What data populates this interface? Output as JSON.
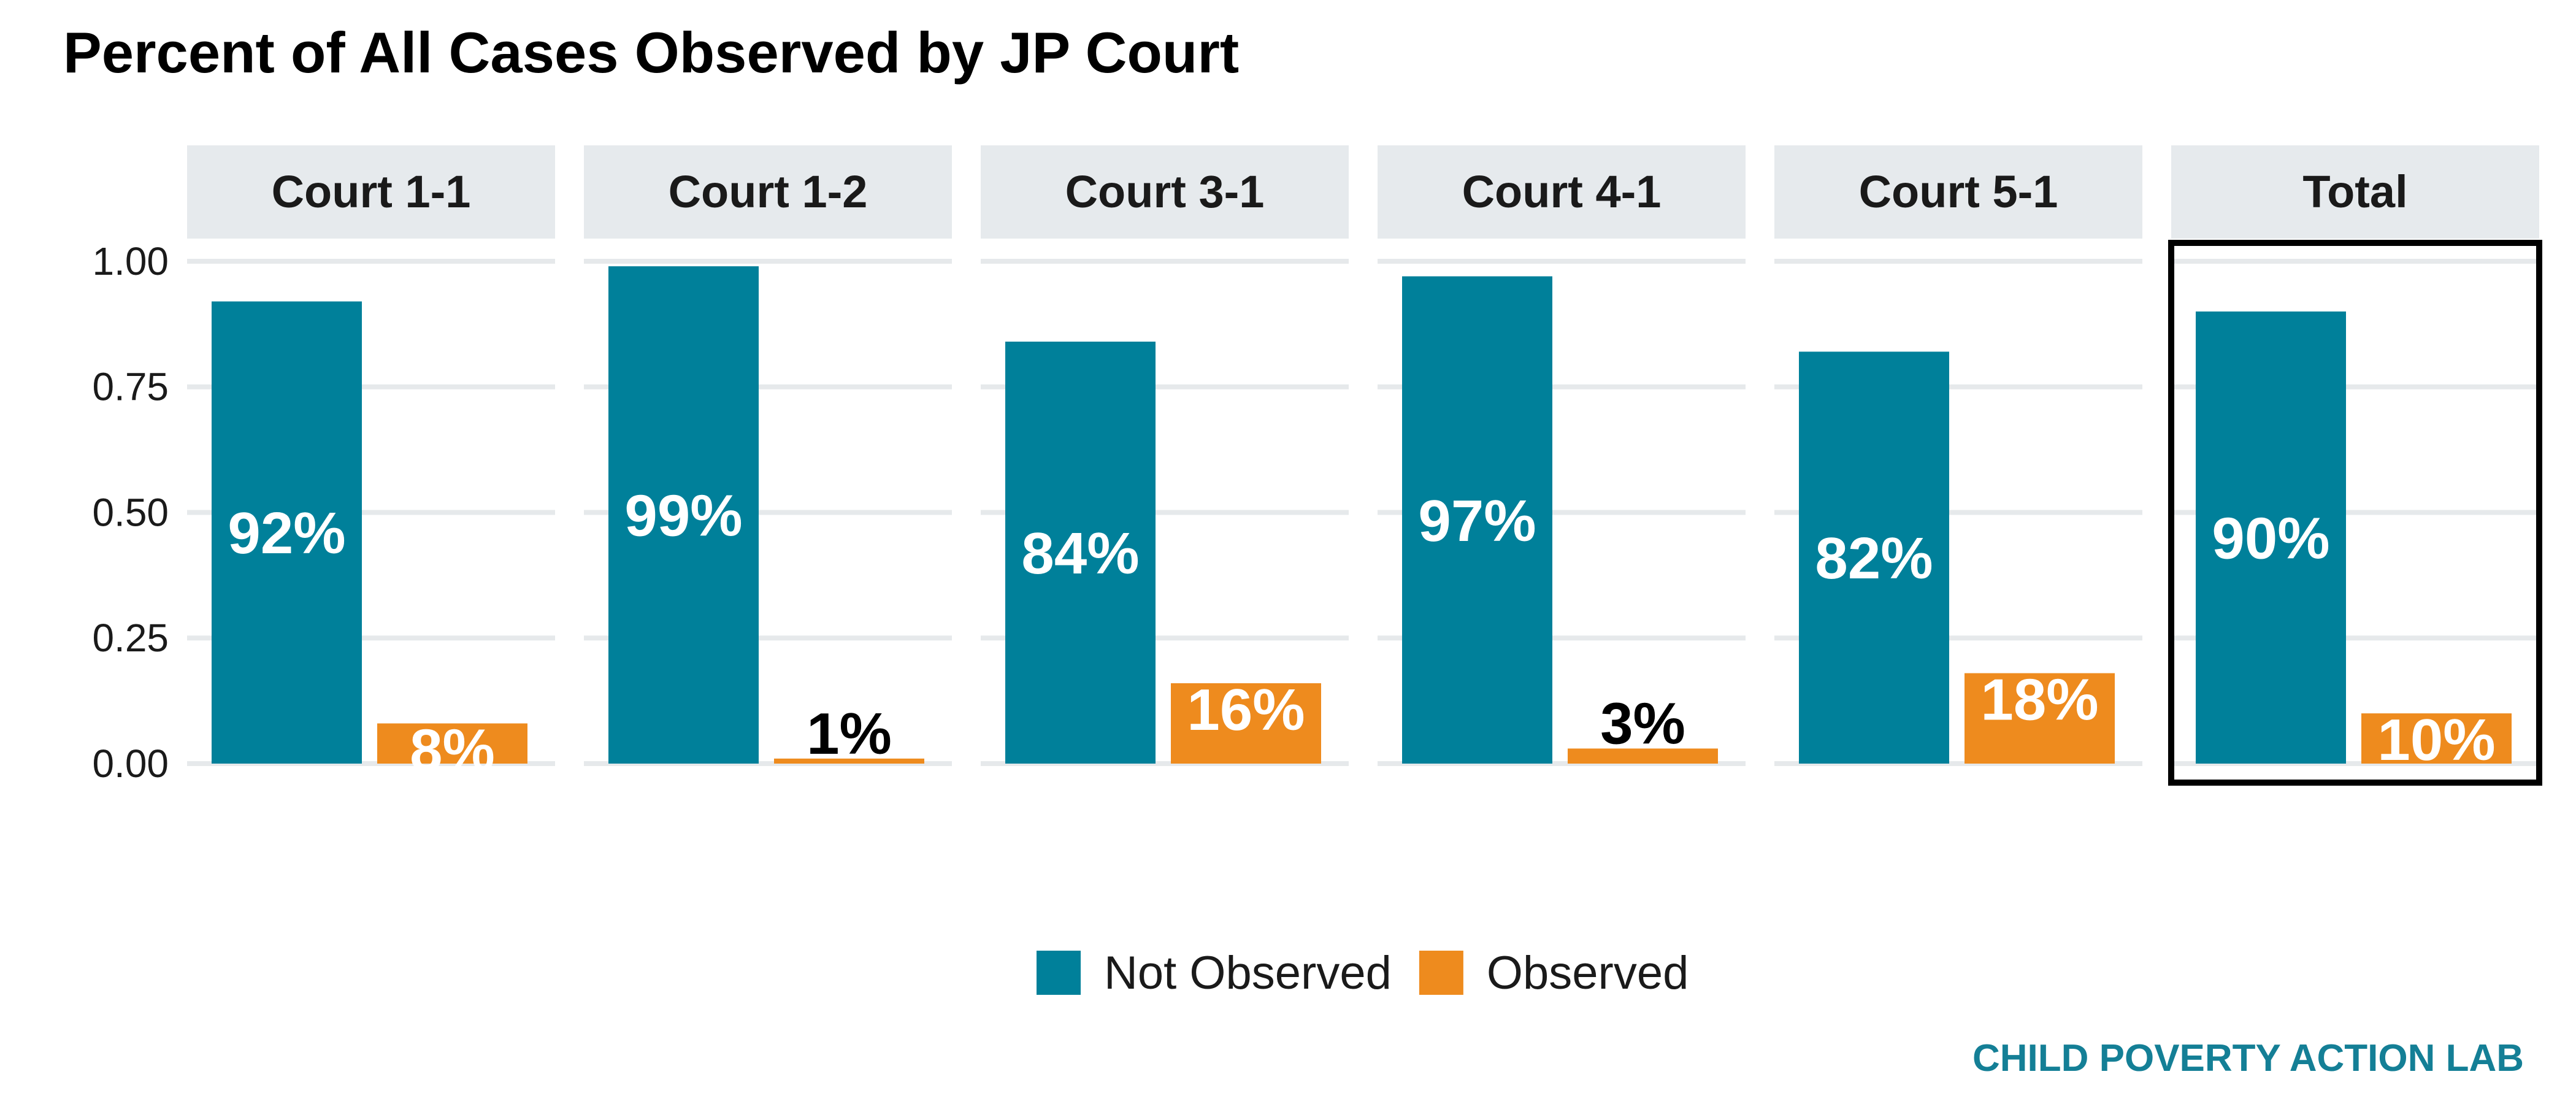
{
  "chart_data": {
    "type": "bar",
    "title": "Percent of All Cases Observed by JP Court",
    "facets": [
      "Court 1-1",
      "Court 1-2",
      "Court 3-1",
      "Court 4-1",
      "Court 5-1",
      "Total"
    ],
    "highlighted_facet": "Total",
    "series": [
      {
        "name": "Not Observed",
        "color": "#00809a",
        "values": [
          0.92,
          0.99,
          0.84,
          0.97,
          0.82,
          0.9
        ],
        "labels": [
          "92%",
          "99%",
          "84%",
          "97%",
          "82%",
          "90%"
        ]
      },
      {
        "name": "Observed",
        "color": "#ee8b1e",
        "values": [
          0.08,
          0.01,
          0.16,
          0.03,
          0.18,
          0.1
        ],
        "labels": [
          "8%",
          "1%",
          "16%",
          "3%",
          "18%",
          "10%"
        ]
      }
    ],
    "yticks": [
      "0.00",
      "0.25",
      "0.50",
      "0.75",
      "1.00"
    ],
    "ylim": [
      0,
      1.05
    ],
    "xlabel": "",
    "ylabel": "",
    "grid": true,
    "legend_position": "bottom"
  },
  "caption": {
    "text": "CHILD POVERTY ACTION LAB",
    "color": "#147f96"
  }
}
